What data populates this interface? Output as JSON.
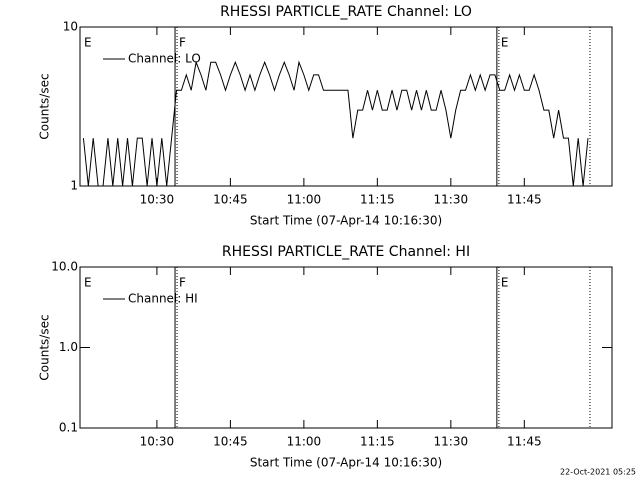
{
  "chart_data": [
    {
      "type": "line",
      "title": "RHESSI PARTICLE_RATE Channel: LO",
      "xlabel": "Start Time (07-Apr-14 10:16:30)",
      "ylabel": "Counts/sec",
      "log_y": true,
      "ylim": [
        1,
        10
      ],
      "yticks": [
        1,
        10
      ],
      "xlim": [
        14.3,
        122.9
      ],
      "xticks": [
        {
          "value": 30,
          "label": "10:30"
        },
        {
          "value": 45,
          "label": "10:45"
        },
        {
          "value": 60,
          "label": "11:00"
        },
        {
          "value": 75,
          "label": "11:15"
        },
        {
          "value": 90,
          "label": "11:30"
        },
        {
          "value": 105,
          "label": "11:45"
        }
      ],
      "markers": [
        {
          "x": 14.3,
          "label": "E",
          "line": false
        },
        {
          "x": 33.7,
          "label": "F",
          "line": true
        },
        {
          "x": 99.4,
          "label": "E",
          "line": true
        }
      ],
      "dotted_lines": [
        118.4
      ],
      "series": [
        {
          "name": "Channel: LO",
          "color": "#000000",
          "x": [
            15,
            16,
            17,
            18,
            19,
            20,
            21,
            22,
            23,
            24,
            25,
            26,
            27,
            28,
            29,
            30,
            31,
            32,
            33,
            34,
            35,
            36,
            37,
            38,
            39,
            40,
            41,
            42,
            43,
            44,
            45,
            46,
            47,
            48,
            49,
            50,
            51,
            52,
            53,
            54,
            55,
            56,
            57,
            58,
            59,
            60,
            61,
            62,
            63,
            64,
            65,
            66,
            67,
            68,
            69,
            70,
            71,
            72,
            73,
            74,
            75,
            76,
            77,
            78,
            79,
            80,
            81,
            82,
            83,
            84,
            85,
            86,
            87,
            88,
            89,
            90,
            91,
            92,
            93,
            94,
            95,
            96,
            97,
            98,
            99,
            100,
            101,
            102,
            103,
            104,
            105,
            106,
            107,
            108,
            109,
            110,
            111,
            112,
            113,
            114,
            115,
            116,
            117,
            118
          ],
          "values": [
            2,
            1,
            2,
            1,
            1,
            2,
            1,
            2,
            1,
            2,
            1,
            2,
            2,
            1,
            2,
            1,
            2,
            1,
            2,
            4,
            4,
            5,
            4,
            6,
            5,
            4,
            6,
            6,
            5,
            4,
            5,
            6,
            5,
            4,
            5,
            4,
            5,
            6,
            5,
            4,
            5,
            6,
            5,
            4,
            6,
            5,
            4,
            5,
            5,
            4,
            4,
            4,
            4,
            4,
            4,
            2,
            3,
            3,
            4,
            3,
            4,
            3,
            3,
            4,
            3,
            4,
            4,
            3,
            4,
            3,
            4,
            3,
            3,
            4,
            3,
            2,
            3,
            4,
            4,
            5,
            4,
            5,
            4,
            5,
            5,
            4,
            4,
            5,
            4,
            5,
            4,
            4,
            5,
            4,
            3,
            3,
            2,
            3,
            2,
            2,
            1,
            2,
            1,
            2
          ]
        }
      ]
    },
    {
      "type": "line",
      "title": "RHESSI PARTICLE_RATE Channel: HI",
      "xlabel": "Start Time (07-Apr-14 10:16:30)",
      "ylabel": "Counts/sec",
      "log_y": true,
      "ylim": [
        0.1,
        10
      ],
      "yticks": [
        0.1,
        {
          "value": 1,
          "label": "1.0"
        },
        {
          "value": 10,
          "label": "10.0"
        }
      ],
      "xlim": [
        14.3,
        122.9
      ],
      "xticks": [
        {
          "value": 30,
          "label": "10:30"
        },
        {
          "value": 45,
          "label": "10:45"
        },
        {
          "value": 60,
          "label": "11:00"
        },
        {
          "value": 75,
          "label": "11:15"
        },
        {
          "value": 90,
          "label": "11:30"
        },
        {
          "value": 105,
          "label": "11:45"
        }
      ],
      "markers": [
        {
          "x": 14.3,
          "label": "E",
          "line": false
        },
        {
          "x": 33.7,
          "label": "F",
          "line": true
        },
        {
          "x": 99.4,
          "label": "E",
          "line": true
        }
      ],
      "dotted_lines": [
        118.4
      ],
      "series": [
        {
          "name": "Channel: HI",
          "color": "#000000",
          "x": [],
          "values": []
        }
      ]
    }
  ],
  "footer": "22-Oct-2021 05:25"
}
